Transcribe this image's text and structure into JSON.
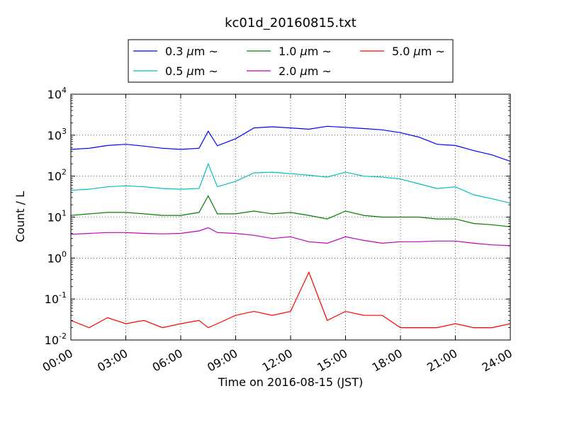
{
  "chart_data": {
    "type": "line",
    "title": "kc01d_20160815.txt",
    "xlabel": "Time on 2016-08-15 (JST)",
    "ylabel": "Count / L",
    "y_scale": "log",
    "xlim": [
      "00:00",
      "24:00"
    ],
    "ylim": [
      0.01,
      10000
    ],
    "x_ticks": [
      "00:00",
      "03:00",
      "06:00",
      "09:00",
      "12:00",
      "15:00",
      "18:00",
      "21:00",
      "24:00"
    ],
    "y_ticks": [
      {
        "base": "10",
        "exp": "-2"
      },
      {
        "base": "10",
        "exp": "-1"
      },
      {
        "base": "10",
        "exp": "0"
      },
      {
        "base": "10",
        "exp": "1"
      },
      {
        "base": "10",
        "exp": "2"
      },
      {
        "base": "10",
        "exp": "3"
      },
      {
        "base": "10",
        "exp": "4"
      }
    ],
    "grid": true,
    "legend_position": "top-center",
    "x": [
      "00:00",
      "01:00",
      "02:00",
      "03:00",
      "04:00",
      "05:00",
      "06:00",
      "07:00",
      "07:30",
      "08:00",
      "09:00",
      "10:00",
      "11:00",
      "12:00",
      "13:00",
      "14:00",
      "15:00",
      "16:00",
      "17:00",
      "18:00",
      "19:00",
      "20:00",
      "21:00",
      "22:00",
      "23:00",
      "24:00"
    ],
    "series": [
      {
        "name": "0.3",
        "unit_symbol": "μ",
        "unit_rest": "m",
        "suffix": "~",
        "color": "#0000ff",
        "values": [
          450,
          480,
          560,
          600,
          540,
          480,
          450,
          480,
          1250,
          550,
          820,
          1500,
          1600,
          1500,
          1400,
          1650,
          1550,
          1450,
          1350,
          1150,
          900,
          600,
          560,
          420,
          330,
          230
        ]
      },
      {
        "name": "0.5",
        "unit_symbol": "μ",
        "unit_rest": "m",
        "suffix": "~",
        "color": "#00bfbf",
        "values": [
          45,
          48,
          55,
          58,
          55,
          50,
          48,
          50,
          200,
          55,
          75,
          120,
          125,
          115,
          105,
          95,
          125,
          100,
          95,
          85,
          65,
          50,
          55,
          35,
          28,
          22
        ]
      },
      {
        "name": "1.0",
        "unit_symbol": "μ",
        "unit_rest": "m",
        "suffix": "~",
        "color": "#008000",
        "values": [
          11,
          12,
          13,
          13,
          12,
          11,
          11,
          13,
          33,
          12,
          12,
          14,
          12,
          13,
          11,
          9,
          14,
          11,
          10,
          10,
          10,
          9,
          9,
          7,
          6.5,
          5.8
        ]
      },
      {
        "name": "2.0",
        "unit_symbol": "μ",
        "unit_rest": "m",
        "suffix": "~",
        "color": "#bf00bf",
        "values": [
          3.8,
          4.0,
          4.2,
          4.2,
          4.0,
          3.9,
          4.0,
          4.6,
          5.5,
          4.2,
          4.0,
          3.6,
          3.0,
          3.3,
          2.5,
          2.3,
          3.3,
          2.7,
          2.3,
          2.5,
          2.5,
          2.6,
          2.6,
          2.3,
          2.1,
          2.0
        ]
      },
      {
        "name": "5.0",
        "unit_symbol": "μ",
        "unit_rest": "m",
        "suffix": "~",
        "color": "#ff0000",
        "values": [
          0.03,
          0.02,
          0.035,
          0.025,
          0.03,
          0.02,
          0.025,
          0.03,
          0.02,
          0.025,
          0.04,
          0.05,
          0.04,
          0.05,
          0.45,
          0.03,
          0.05,
          0.04,
          0.04,
          0.02,
          0.02,
          0.02,
          0.025,
          0.02,
          0.02,
          0.025
        ]
      }
    ]
  }
}
